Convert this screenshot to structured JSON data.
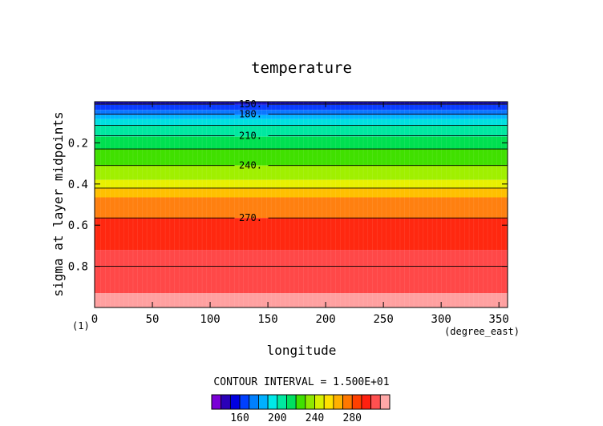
{
  "chart_data": {
    "type": "heatmap",
    "title": "temperature",
    "xlabel": "longitude",
    "ylabel": "sigma at layer midpoints",
    "x_unit": "(degree_east)",
    "y_unit": "(1)",
    "xlim": [
      0,
      357.5
    ],
    "ylim": [
      1.0,
      0.0
    ],
    "x_ticks": [
      "0",
      "50",
      "100",
      "150",
      "200",
      "250",
      "300",
      "350"
    ],
    "x_tick_values": [
      0,
      50,
      100,
      150,
      200,
      250,
      300,
      350
    ],
    "y_ticks": [
      "0.2",
      "0.4",
      "0.6",
      "0.8"
    ],
    "y_tick_values": [
      0.2,
      0.4,
      0.6,
      0.8
    ],
    "bands": [
      {
        "y0": 0.0,
        "y1": 0.015,
        "value": 150
      },
      {
        "y0": 0.015,
        "y1": 0.04,
        "value": 165
      },
      {
        "y0": 0.04,
        "y1": 0.065,
        "value": 175
      },
      {
        "y0": 0.065,
        "y1": 0.085,
        "value": 185
      },
      {
        "y0": 0.085,
        "y1": 0.115,
        "value": 195
      },
      {
        "y0": 0.115,
        "y1": 0.17,
        "value": 205
      },
      {
        "y0": 0.17,
        "y1": 0.23,
        "value": 215
      },
      {
        "y0": 0.23,
        "y1": 0.31,
        "value": 225
      },
      {
        "y0": 0.31,
        "y1": 0.38,
        "value": 235
      },
      {
        "y0": 0.38,
        "y1": 0.42,
        "value": 245
      },
      {
        "y0": 0.42,
        "y1": 0.465,
        "value": 250
      },
      {
        "y0": 0.465,
        "y1": 0.565,
        "value": 260
      },
      {
        "y0": 0.565,
        "y1": 0.72,
        "value": 270
      },
      {
        "y0": 0.72,
        "y1": 0.93,
        "value": 280
      },
      {
        "y0": 0.93,
        "y1": 1.0,
        "value": 290
      }
    ],
    "contour_lines": [
      {
        "y": 0.012,
        "label": "150."
      },
      {
        "y": 0.06,
        "label": "180."
      },
      {
        "y": 0.115,
        "label": ""
      },
      {
        "y": 0.165,
        "label": "210."
      },
      {
        "y": 0.23,
        "label": ""
      },
      {
        "y": 0.31,
        "label": "240."
      },
      {
        "y": 0.42,
        "label": ""
      },
      {
        "y": 0.565,
        "label": "270."
      },
      {
        "y": 0.8,
        "label": ""
      }
    ],
    "label_x": 135,
    "contour_interval_text": "CONTOUR INTERVAL = 1.500E+01",
    "colorbar": {
      "colors": [
        "#7a00d6",
        "#2a00b8",
        "#0000e0",
        "#0040ff",
        "#0080ff",
        "#00b0ff",
        "#00e8e8",
        "#00e8a0",
        "#00e060",
        "#40e000",
        "#90e800",
        "#d8f000",
        "#ffe000",
        "#ffb000",
        "#ff7800",
        "#ff4000",
        "#ff2010",
        "#ff5050",
        "#ffa8a8"
      ],
      "tick_labels": [
        "160",
        "200",
        "240",
        "280"
      ],
      "tick_after_index": [
        2,
        6,
        10,
        14
      ]
    },
    "band_colors": {
      "150": "#1a10c0",
      "165": "#0a3cff",
      "175": "#0a78ff",
      "185": "#00b8ff",
      "195": "#00e0e0",
      "205": "#00e8a0",
      "215": "#00e050",
      "225": "#40e000",
      "235": "#a0f000",
      "245": "#e8f000",
      "250": "#ffc000",
      "260": "#ff8010",
      "270": "#ff2810",
      "280": "#ff4848",
      "290": "#ffa0a0"
    }
  }
}
